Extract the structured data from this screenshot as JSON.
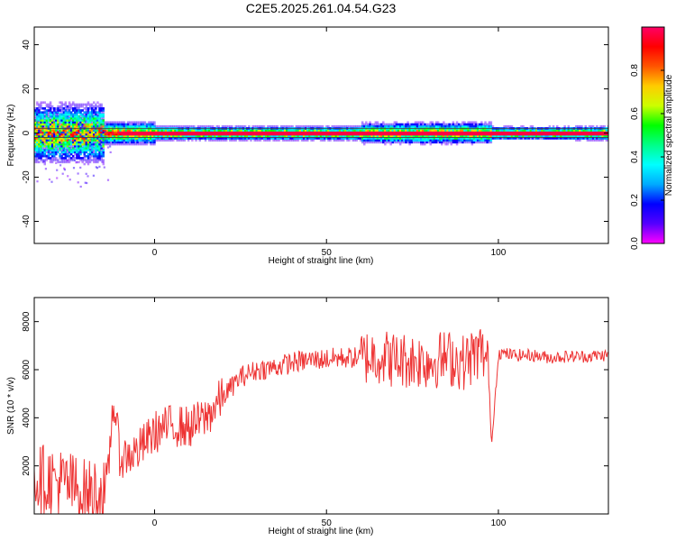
{
  "title": "C2E5.2025.261.04.54.G23",
  "chart_data": [
    {
      "type": "heatmap",
      "xlabel": "Height of straight line (km)",
      "ylabel": "Frequency (Hz)",
      "xlim": [
        -35,
        132
      ],
      "ylim": [
        -50,
        48
      ],
      "xticks": [
        0,
        50,
        100
      ],
      "yticks": [
        -40,
        -20,
        0,
        20,
        40
      ],
      "colorbar": {
        "label": "Normalized spectral amplitude",
        "range": [
          0,
          1
        ],
        "ticks": [
          "0.0",
          "0.2",
          "0.4",
          "0.6",
          "0.8"
        ],
        "colormap": [
          "#ff00ff",
          "#5500ff",
          "#0000ff",
          "#00aaff",
          "#00ffff",
          "#00ff88",
          "#00ff00",
          "#ccff00",
          "#ffcc00",
          "#ff5500",
          "#ff0000",
          "#ff0066"
        ]
      },
      "ridge_frequency_hz": 0,
      "lines_hz": [
        -2,
        2
      ]
    },
    {
      "type": "line",
      "xlabel": "Height of straight line (km)",
      "ylabel": "SNR (10 * v/v)",
      "xlim": [
        -35,
        132
      ],
      "ylim": [
        0,
        9000
      ],
      "xticks": [
        0,
        50,
        100
      ],
      "yticks": [
        2000,
        4000,
        6000,
        8000
      ],
      "color": "#ee3333",
      "x": [
        -35,
        -30,
        -25,
        -20,
        -17,
        -14,
        -12,
        -10,
        -5,
        0,
        5,
        10,
        15,
        20,
        25,
        30,
        35,
        40,
        45,
        50,
        55,
        60,
        65,
        70,
        75,
        80,
        85,
        90,
        95,
        97,
        98,
        100,
        105,
        110,
        115,
        120,
        125,
        130,
        132
      ],
      "values": [
        1500,
        1400,
        1200,
        800,
        900,
        700,
        4800,
        2300,
        2600,
        3400,
        3700,
        3600,
        4000,
        4900,
        5700,
        6000,
        6100,
        6300,
        6400,
        6450,
        6500,
        6500,
        6600,
        6400,
        6400,
        6350,
        6500,
        6300,
        6800,
        6300,
        2800,
        6700,
        6600,
        6600,
        6500,
        6550,
        6550,
        6600,
        6600
      ]
    }
  ]
}
